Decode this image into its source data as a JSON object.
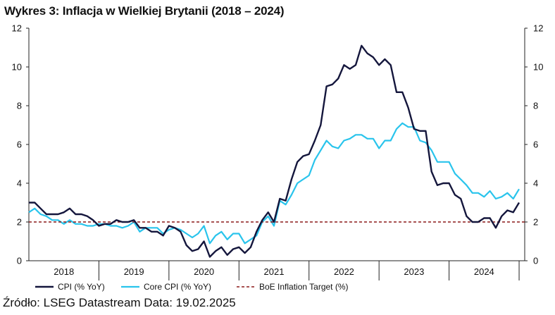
{
  "title": "Wykres 3: Inflacja w Wielkiej Brytanii (2018 – 2024)",
  "source": "Źródło: LSEG Datastream Data: 19.02.2025",
  "chart_data": {
    "type": "line",
    "title": "Wykres 3: Inflacja w Wielkiej Brytanii (2018 – 2024)",
    "xlabel": "",
    "ylabel": "",
    "ylim": [
      0,
      12
    ],
    "yticks": [
      "0",
      "2",
      "4",
      "6",
      "8",
      "10",
      "12"
    ],
    "xlim": [
      2017.5,
      2024.58
    ],
    "xticks": [
      {
        "label": "2018",
        "x": 2018.0
      },
      {
        "label": "2019",
        "x": 2019.0
      },
      {
        "label": "2020",
        "x": 2020.0
      },
      {
        "label": "2021",
        "x": 2021.0
      },
      {
        "label": "2022",
        "x": 2022.0
      },
      {
        "label": "2023",
        "x": 2023.0
      },
      {
        "label": "2024",
        "x": 2024.0
      }
    ],
    "x_start": 2017.5,
    "x_step": 0.08333,
    "series": [
      {
        "name": "CPI (% YoY)",
        "color": "#14163c",
        "values": [
          3.0,
          3.0,
          2.7,
          2.4,
          2.4,
          2.4,
          2.5,
          2.7,
          2.4,
          2.4,
          2.3,
          2.1,
          1.8,
          1.9,
          1.9,
          2.1,
          2.0,
          2.0,
          2.1,
          1.7,
          1.7,
          1.5,
          1.5,
          1.3,
          1.8,
          1.7,
          1.5,
          0.8,
          0.5,
          0.6,
          1.0,
          0.2,
          0.5,
          0.7,
          0.3,
          0.6,
          0.7,
          0.4,
          0.7,
          1.5,
          2.1,
          2.5,
          2.0,
          3.2,
          3.1,
          4.2,
          5.1,
          5.4,
          5.5,
          6.2,
          7.0,
          9.0,
          9.1,
          9.4,
          10.1,
          9.9,
          10.1,
          11.1,
          10.7,
          10.5,
          10.1,
          10.4,
          10.1,
          8.7,
          8.7,
          7.9,
          6.8,
          6.7,
          6.7,
          4.6,
          3.9,
          4.0,
          4.0,
          3.4,
          3.2,
          2.3,
          2.0,
          2.0,
          2.2,
          2.2,
          1.7,
          2.3,
          2.6,
          2.5,
          3.0
        ]
      },
      {
        "name": "Core CPI (% YoY)",
        "color": "#29c4ec",
        "values": [
          2.5,
          2.7,
          2.4,
          2.3,
          2.1,
          2.1,
          1.9,
          2.1,
          1.9,
          1.9,
          1.8,
          1.8,
          1.9,
          1.9,
          1.8,
          1.8,
          1.7,
          1.8,
          2.0,
          1.5,
          1.7,
          1.7,
          1.7,
          1.4,
          1.6,
          1.7,
          1.6,
          1.4,
          1.2,
          1.4,
          1.8,
          0.9,
          1.3,
          1.5,
          1.1,
          1.4,
          1.4,
          0.9,
          1.1,
          1.3,
          2.0,
          2.3,
          1.8,
          3.1,
          2.9,
          3.4,
          4.0,
          4.2,
          4.4,
          5.2,
          5.7,
          6.2,
          5.9,
          5.8,
          6.2,
          6.3,
          6.5,
          6.5,
          6.3,
          6.3,
          5.8,
          6.2,
          6.2,
          6.8,
          7.1,
          6.9,
          6.9,
          6.2,
          6.1,
          5.7,
          5.1,
          5.1,
          5.1,
          4.5,
          4.2,
          3.9,
          3.5,
          3.5,
          3.3,
          3.6,
          3.2,
          3.3,
          3.5,
          3.2,
          3.7
        ]
      },
      {
        "name": "BoE Inflation Target (%)",
        "color": "#8b1a1a",
        "values": [
          2,
          2
        ]
      }
    ],
    "legend": {
      "placement": "bottom",
      "entries": [
        "CPI (% YoY)",
        "Core CPI (% YoY)",
        "BoE Inflation Target (%)"
      ]
    }
  }
}
